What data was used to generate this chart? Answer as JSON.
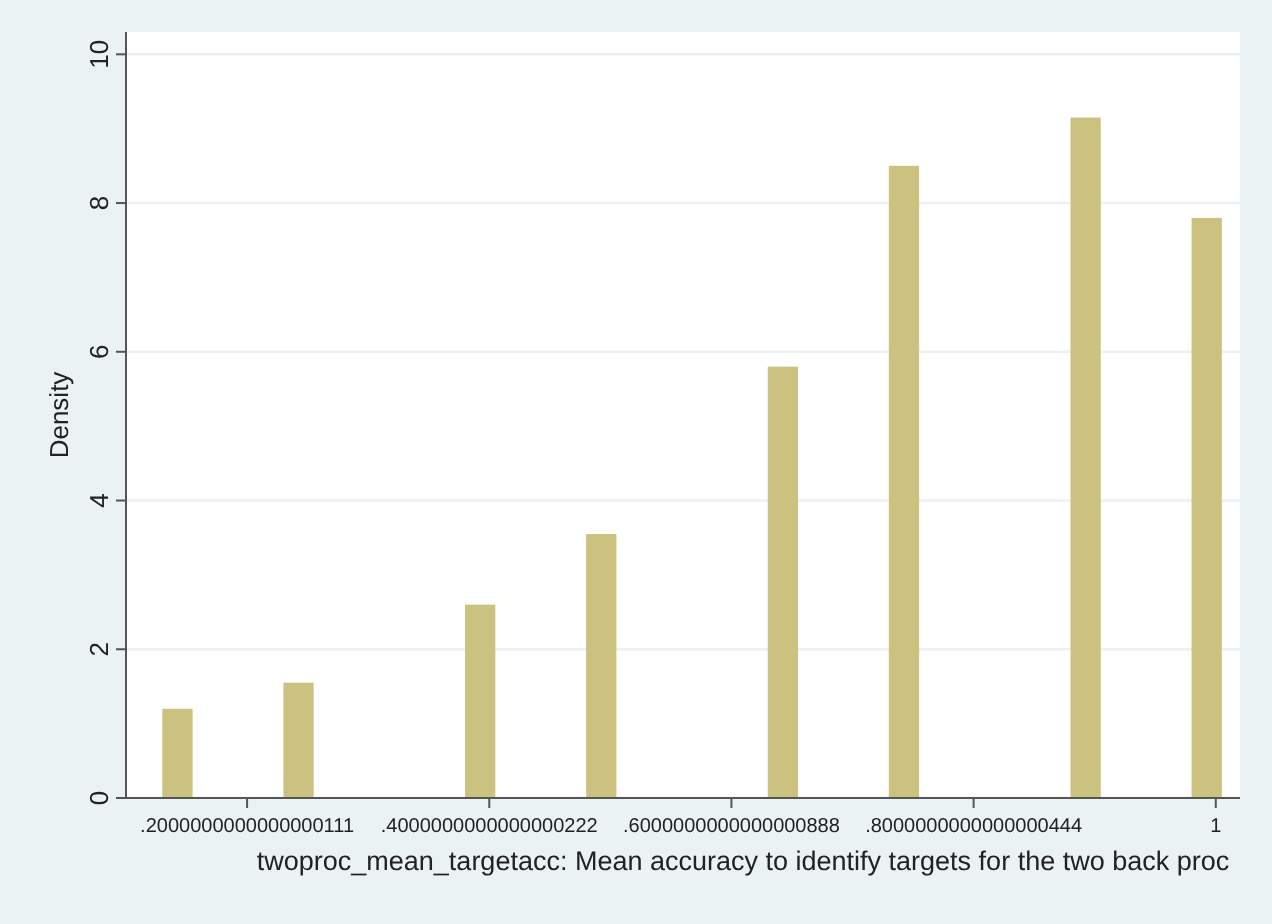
{
  "chart_data": {
    "type": "histogram",
    "xlabel": "twoproc_mean_targetacc: Mean accuracy to identify targets for the two back proc",
    "ylabel": "Density",
    "bins": [
      0.13,
      0.155,
      0.18,
      0.205,
      0.23,
      0.255,
      0.28,
      0.305,
      0.33,
      0.355,
      0.38,
      0.405,
      0.43,
      0.455,
      0.48,
      0.505,
      0.53,
      0.555,
      0.58,
      0.605,
      0.63,
      0.655,
      0.68,
      0.705,
      0.73,
      0.755,
      0.78,
      0.805,
      0.83,
      0.855,
      0.88,
      0.905,
      0.93,
      0.955,
      0.98,
      1.005
    ],
    "values": [
      1.2,
      0,
      0,
      0,
      1.55,
      0,
      0,
      0,
      0,
      0,
      2.6,
      0,
      0,
      0,
      3.55,
      0,
      0,
      0,
      0,
      0,
      5.8,
      0,
      0,
      0,
      8.5,
      0,
      0,
      0,
      0,
      0,
      9.15,
      0,
      0,
      0,
      7.8
    ],
    "color": "#cbc27f",
    "xlim": [
      0.1,
      1.02
    ],
    "xticks": [
      {
        "value": 0.2,
        "label": ".2000000000000000111"
      },
      {
        "value": 0.4,
        "label": ".4000000000000000222"
      },
      {
        "value": 0.6,
        "label": ".6000000000000000888"
      },
      {
        "value": 0.8,
        "label": ".8000000000000000444"
      },
      1
    ],
    "ylim": [
      0,
      10.3
    ],
    "yticks": [
      0,
      2,
      4,
      6,
      8,
      10
    ],
    "grid": "y"
  }
}
